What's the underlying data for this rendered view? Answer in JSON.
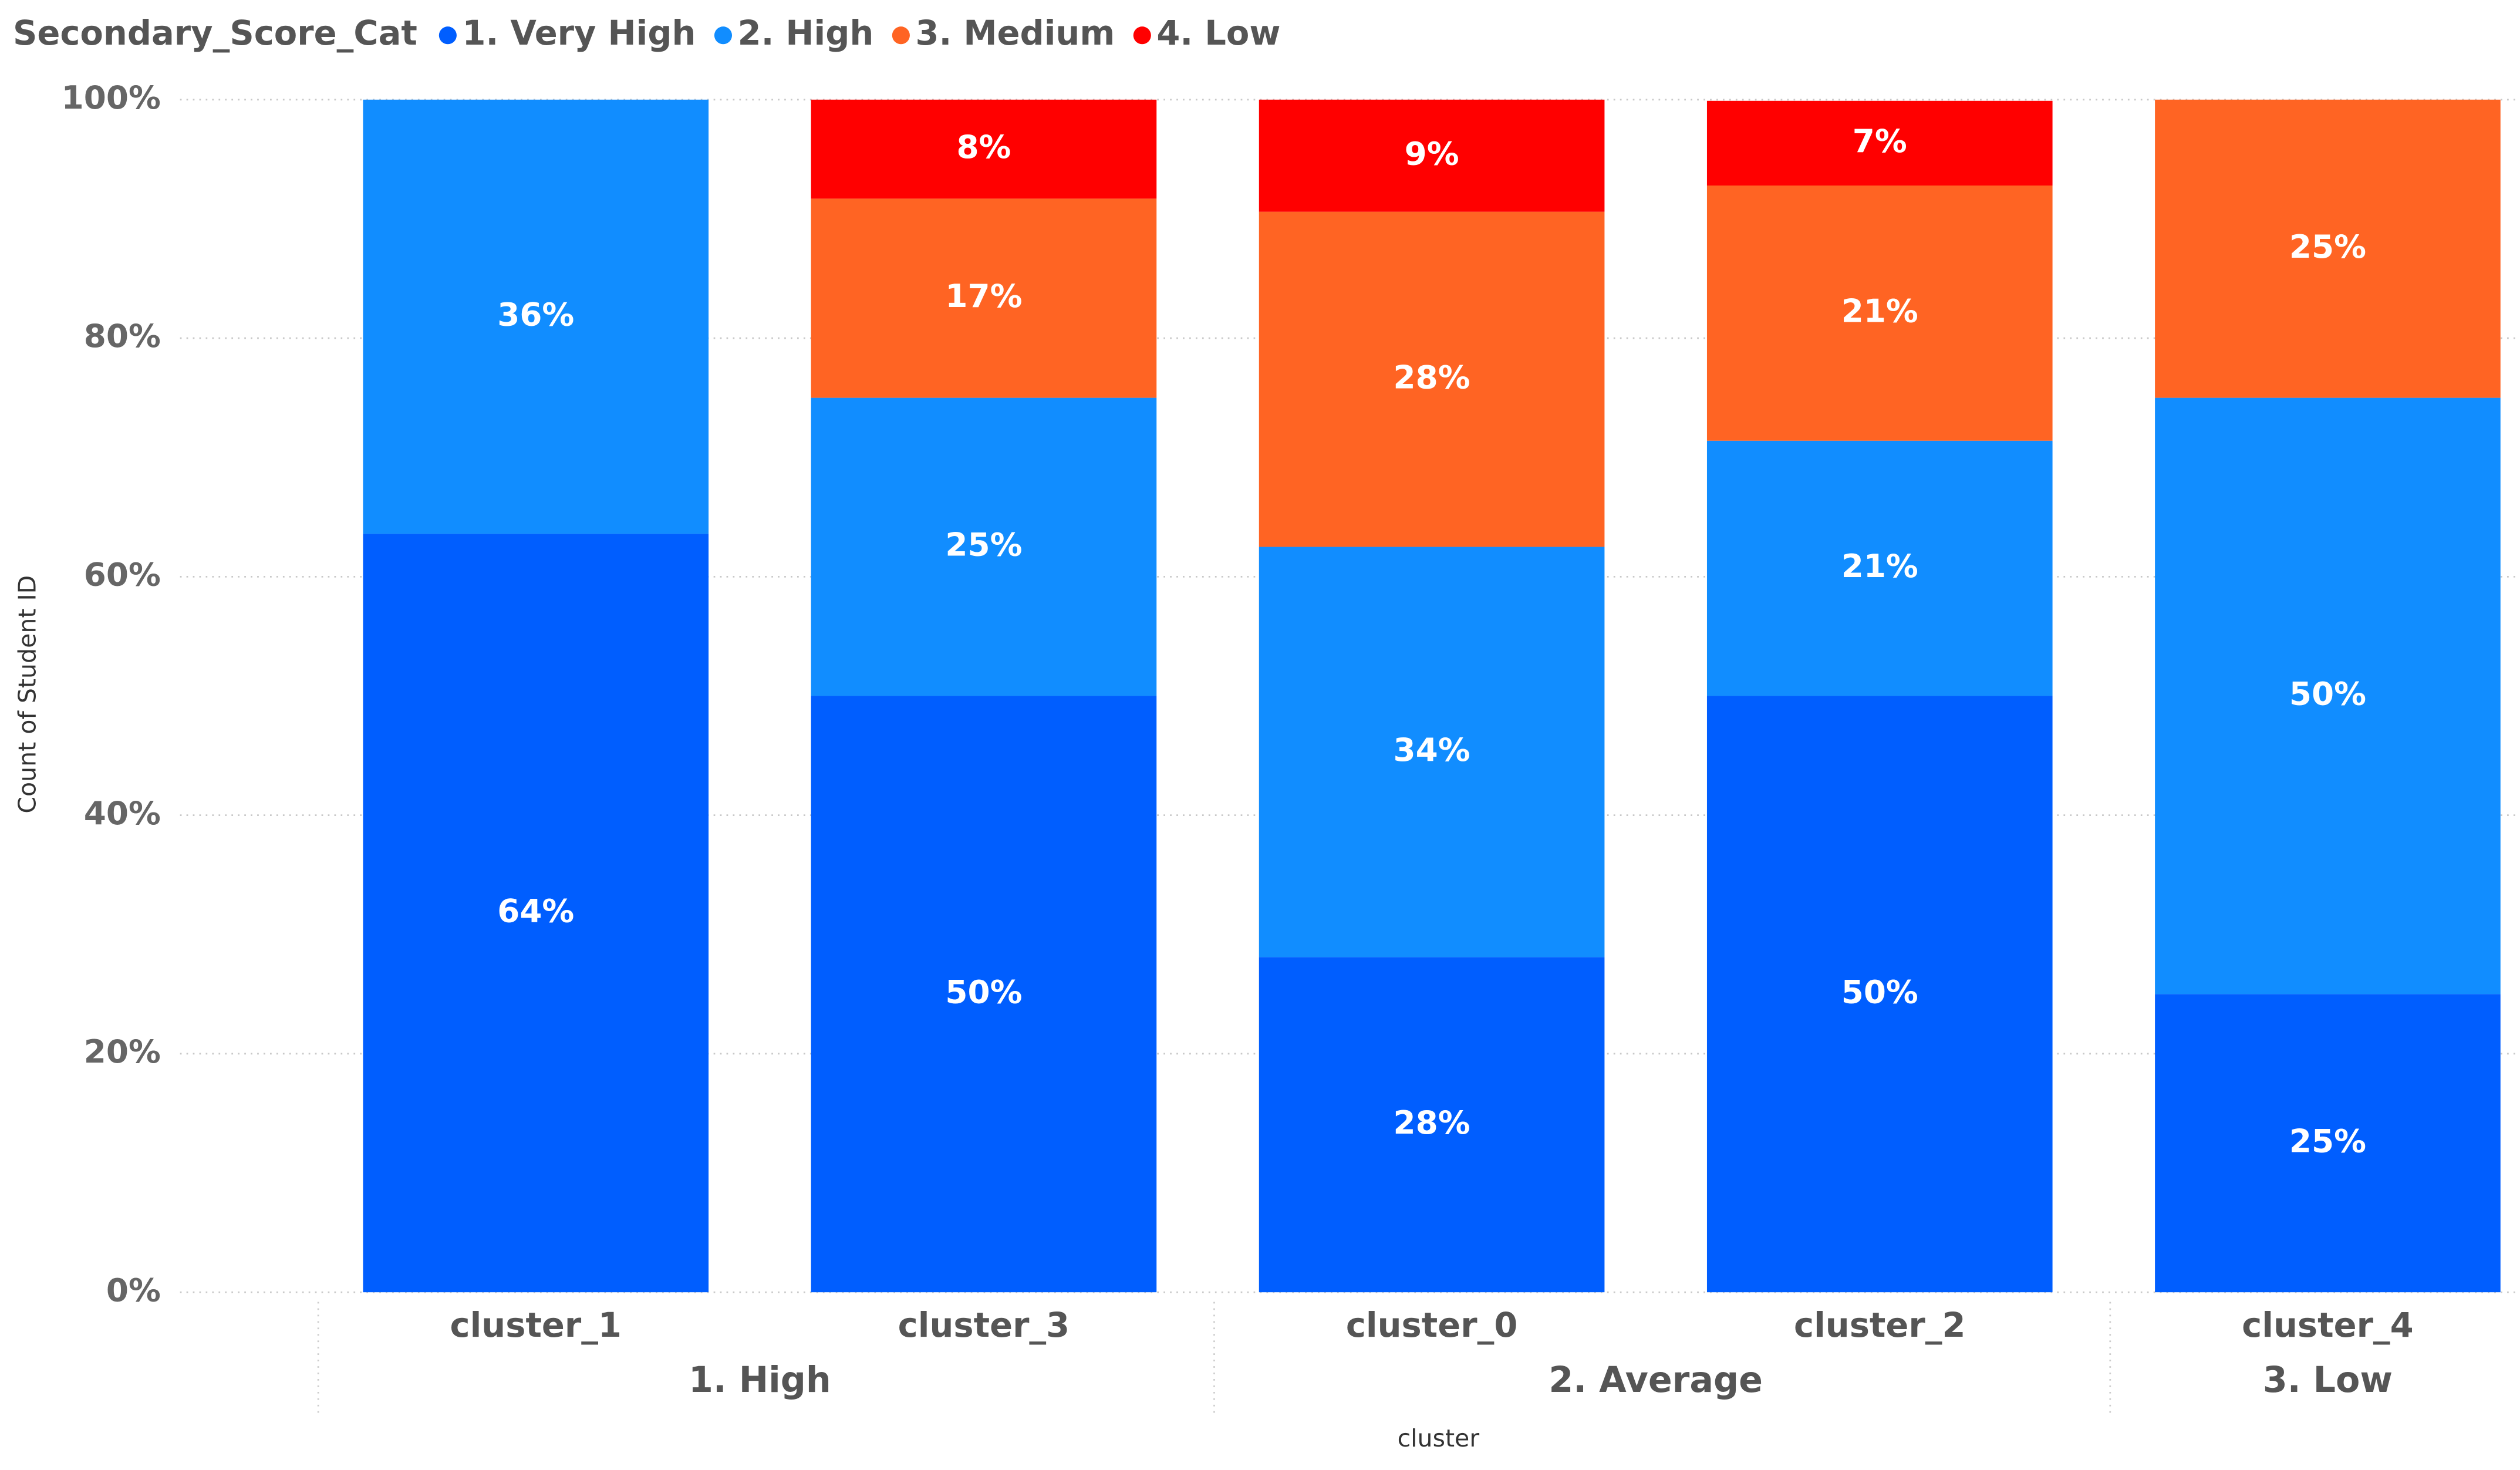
{
  "chart_data": {
    "type": "stacked_bar_100",
    "legend_title": "Secondary_Score_Cat",
    "x_label": "cluster",
    "y_label": "Count of Student ID",
    "categories": [
      "cluster_1",
      "cluster_3",
      "cluster_0",
      "cluster_2",
      "cluster_4"
    ],
    "groups": [
      {
        "label": "1. High",
        "size": 2
      },
      {
        "label": "2. Average",
        "size": 2
      },
      {
        "label": "3. Low",
        "size": 1
      }
    ],
    "series": [
      {
        "name": "1. Very High",
        "color": "#005eff",
        "values": [
          63.6,
          50,
          28.1,
          50,
          25
        ],
        "value_labels": [
          "64%",
          "50%",
          "28%",
          "50%",
          "25%"
        ]
      },
      {
        "name": "2. High",
        "color": "#118dff",
        "values": [
          36.4,
          25,
          34.4,
          21.4,
          50
        ],
        "value_labels": [
          "36%",
          "25%",
          "34%",
          "21%",
          "50%"
        ]
      },
      {
        "name": "3. Medium",
        "color": "#ff6423",
        "values": [
          null,
          16.7,
          28.1,
          21.4,
          25
        ],
        "value_labels": [
          null,
          "17%",
          "28%",
          "21%",
          "25%"
        ]
      },
      {
        "name": "4. Low",
        "color": "#ff0000",
        "values": [
          null,
          8.3,
          9.4,
          7.1,
          null
        ],
        "value_labels": [
          null,
          "8%",
          "9%",
          "7%",
          null
        ]
      }
    ],
    "ylim": [
      0,
      100
    ],
    "yticks": [
      {
        "value": 0,
        "label": "0%"
      },
      {
        "value": 20,
        "label": "20%"
      },
      {
        "value": 40,
        "label": "40%"
      },
      {
        "value": 60,
        "label": "60%"
      },
      {
        "value": 80,
        "label": "80%"
      },
      {
        "value": 100,
        "label": "100%"
      }
    ],
    "grid": true
  }
}
